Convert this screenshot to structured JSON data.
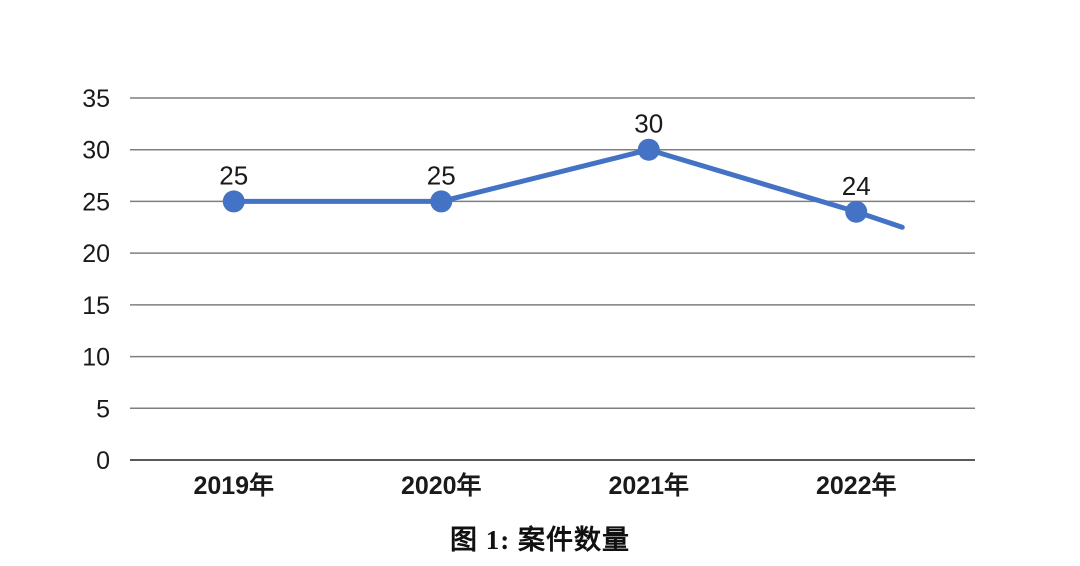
{
  "caption": "图 1: 案件数量",
  "colors": {
    "line": "#4472C4",
    "marker": "#4472C4",
    "gridline": "#7F7F7F",
    "baseline": "#595959",
    "text": "#1A1A1A",
    "background": "#FFFFFF"
  },
  "chart_data": {
    "type": "line",
    "title": "图 1: 案件数量",
    "categories": [
      "2019年",
      "2020年",
      "2021年",
      "2022年"
    ],
    "values": [
      25,
      25,
      30,
      24
    ],
    "data_labels": [
      "25",
      "25",
      "30",
      "24"
    ],
    "tail_value": 22.5,
    "xlabel": "",
    "ylabel": "",
    "y_ticks": [
      35,
      30,
      25,
      20,
      15,
      10,
      5,
      0
    ],
    "ylim": [
      0,
      35
    ],
    "grid": "horizontal",
    "legend": "none"
  }
}
